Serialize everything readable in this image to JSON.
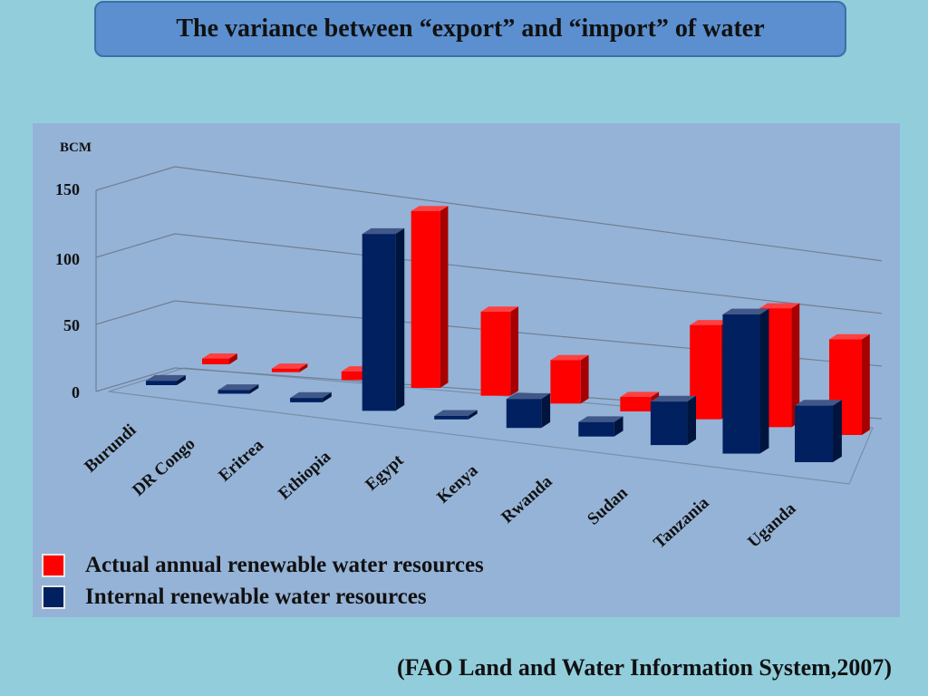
{
  "title": "The variance between “export” and “import” of water",
  "source": "(FAO Land and Water Information System,2007)",
  "colors": {
    "background": "#92cddc",
    "panel": "#95b3d7",
    "title_box": "#5b8fcf",
    "actual": "#ff0000",
    "internal": "#002060"
  },
  "legend": {
    "actual_label": "Actual annual renewable water resources",
    "internal_label": "Internal renewable water resources"
  },
  "chart_data": {
    "type": "bar",
    "style": "3d-clustered",
    "ylabel": "BCM",
    "ylim": [
      0,
      150
    ],
    "y_ticks": [
      "0",
      "50",
      "100",
      "150"
    ],
    "grid": true,
    "legend_position": "bottom-left",
    "categories": [
      "Burundi",
      "DR Congo",
      "Eritrea",
      "Ethiopia",
      "Egypt",
      "Kenya",
      "Rwanda",
      "Sudan",
      "Tanzania",
      "Uganda"
    ],
    "series": [
      {
        "name": "Actual annual renewable water resources",
        "color": "#ff0000",
        "values": [
          4,
          1,
          6,
          122,
          58,
          30,
          10,
          65,
          82,
          66
        ]
      },
      {
        "name": "Internal renewable water resources",
        "color": "#002060",
        "values": [
          3,
          1,
          3,
          122,
          2,
          20,
          10,
          30,
          96,
          39
        ]
      }
    ]
  }
}
